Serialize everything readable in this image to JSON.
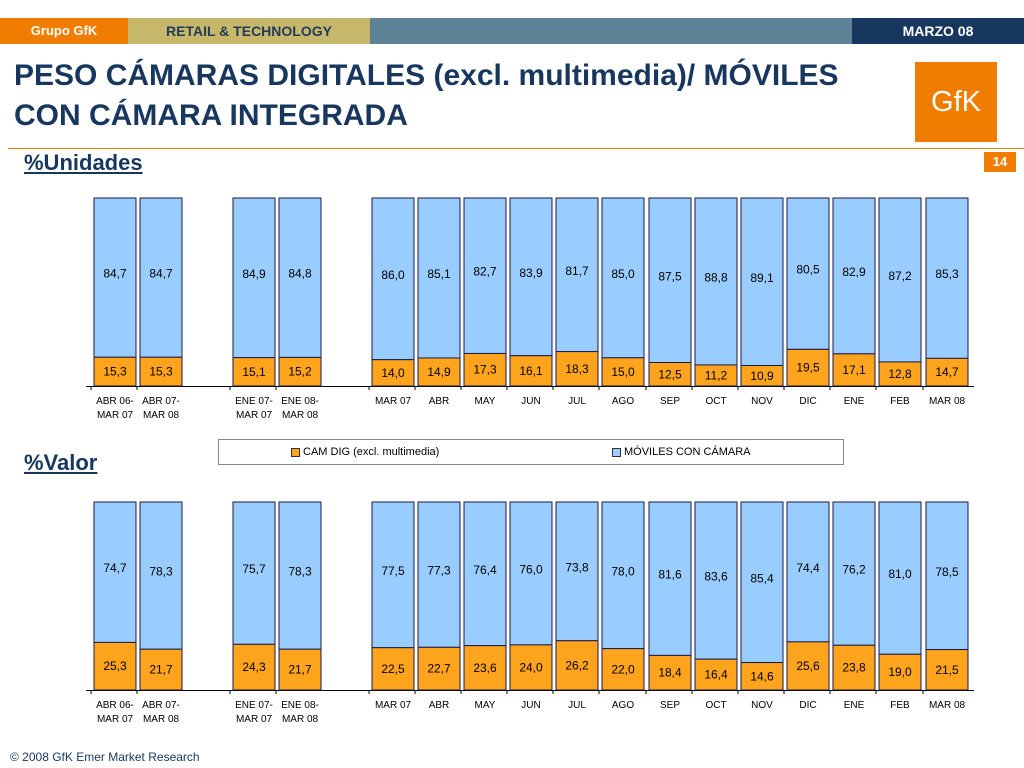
{
  "header": {
    "left": "Grupo GfK",
    "center": "RETAIL & TECHNOLOGY",
    "right": "MARZO 08"
  },
  "title": "PESO CÁMARAS DIGITALES (excl. multimedia)/ MÓVILES CON CÁMARA INTEGRADA",
  "logo_text": "GfK",
  "page_number": "14",
  "footer": "© 2008 GfK Emer Market Research",
  "colors": {
    "cam": "#ffa41c",
    "movil": "#99ccff",
    "bar_border": "#1a1a4a"
  },
  "chart_data": [
    {
      "type": "bar",
      "stacked": true,
      "percent": true,
      "title": "%Unidades",
      "categories": [
        "ABR 06-\nMAR 07",
        "ABR 07-\nMAR 08",
        "ENE 07-\nMAR 07",
        "ENE 08-\nMAR 08",
        "MAR 07",
        "ABR",
        "MAY",
        "JUN",
        "JUL",
        "AGO",
        "SEP",
        "OCT",
        "NOV",
        "DIC",
        "ENE",
        "FEB",
        "MAR 08"
      ],
      "series": [
        {
          "name": "CAM DIG (excl. multimedia)",
          "values": [
            15.3,
            15.3,
            15.1,
            15.2,
            14.0,
            14.9,
            17.3,
            16.1,
            18.3,
            15.0,
            12.5,
            11.2,
            10.9,
            19.5,
            17.1,
            12.8,
            14.7
          ]
        },
        {
          "name": "MÓVILES CON CÁMARA",
          "values": [
            84.7,
            84.7,
            84.9,
            84.8,
            86.0,
            85.1,
            82.7,
            83.9,
            81.7,
            85.0,
            87.5,
            88.8,
            89.1,
            80.5,
            82.9,
            87.2,
            85.3
          ]
        }
      ],
      "labels_bottom": [
        "15,3",
        "15,3",
        "15,1",
        "15,2",
        "14,0",
        "14,9",
        "17,3",
        "16,1",
        "18,3",
        "15,0",
        "12,5",
        "11,2",
        "10,9",
        "19,5",
        "17,1",
        "12,8",
        "14,7"
      ],
      "labels_top": [
        "84,7",
        "84,7",
        "84,9",
        "84,8",
        "86,0",
        "85,1",
        "82,7",
        "83,9",
        "81,7",
        "85,0",
        "87,5",
        "88,8",
        "89,1",
        "80,5",
        "82,9",
        "87,2",
        "85,3"
      ],
      "ylim": [
        0,
        100
      ]
    },
    {
      "type": "bar",
      "stacked": true,
      "percent": true,
      "title": "%Valor",
      "categories": [
        "ABR 06-\nMAR 07",
        "ABR 07-\nMAR 08",
        "ENE 07-\nMAR 07",
        "ENE 08-\nMAR 08",
        "MAR 07",
        "ABR",
        "MAY",
        "JUN",
        "JUL",
        "AGO",
        "SEP",
        "OCT",
        "NOV",
        "DIC",
        "ENE",
        "FEB",
        "MAR 08"
      ],
      "series": [
        {
          "name": "CAM DIG (excl. multimedia)",
          "values": [
            25.3,
            21.7,
            24.3,
            21.7,
            22.5,
            22.7,
            23.6,
            24.0,
            26.2,
            22.0,
            18.4,
            16.4,
            14.6,
            25.6,
            23.8,
            19.0,
            21.5
          ]
        },
        {
          "name": "MÓVILES CON CÁMARA",
          "values": [
            74.7,
            78.3,
            75.7,
            78.3,
            77.5,
            77.3,
            76.4,
            76.0,
            73.8,
            78.0,
            81.6,
            83.6,
            85.4,
            74.4,
            76.2,
            81.0,
            78.5
          ]
        }
      ],
      "labels_bottom": [
        "25,3",
        "21,7",
        "24,3",
        "21,7",
        "22,5",
        "22,7",
        "23,6",
        "24,0",
        "26,2",
        "22,0",
        "18,4",
        "16,4",
        "14,6",
        "25,6",
        "23,8",
        "19,0",
        "21,5"
      ],
      "labels_top": [
        "74,7",
        "78,3",
        "75,7",
        "78,3",
        "77,5",
        "77,3",
        "76,4",
        "76,0",
        "73,8",
        "78,0",
        "81,6",
        "83,6",
        "85,4",
        "74,4",
        "76,2",
        "81,0",
        "78,5"
      ],
      "ylim": [
        0,
        100
      ]
    }
  ],
  "legend": {
    "cam": "CAM DIG (excl. multimedia)",
    "movil": "MÓVILES CON CÁMARA"
  }
}
